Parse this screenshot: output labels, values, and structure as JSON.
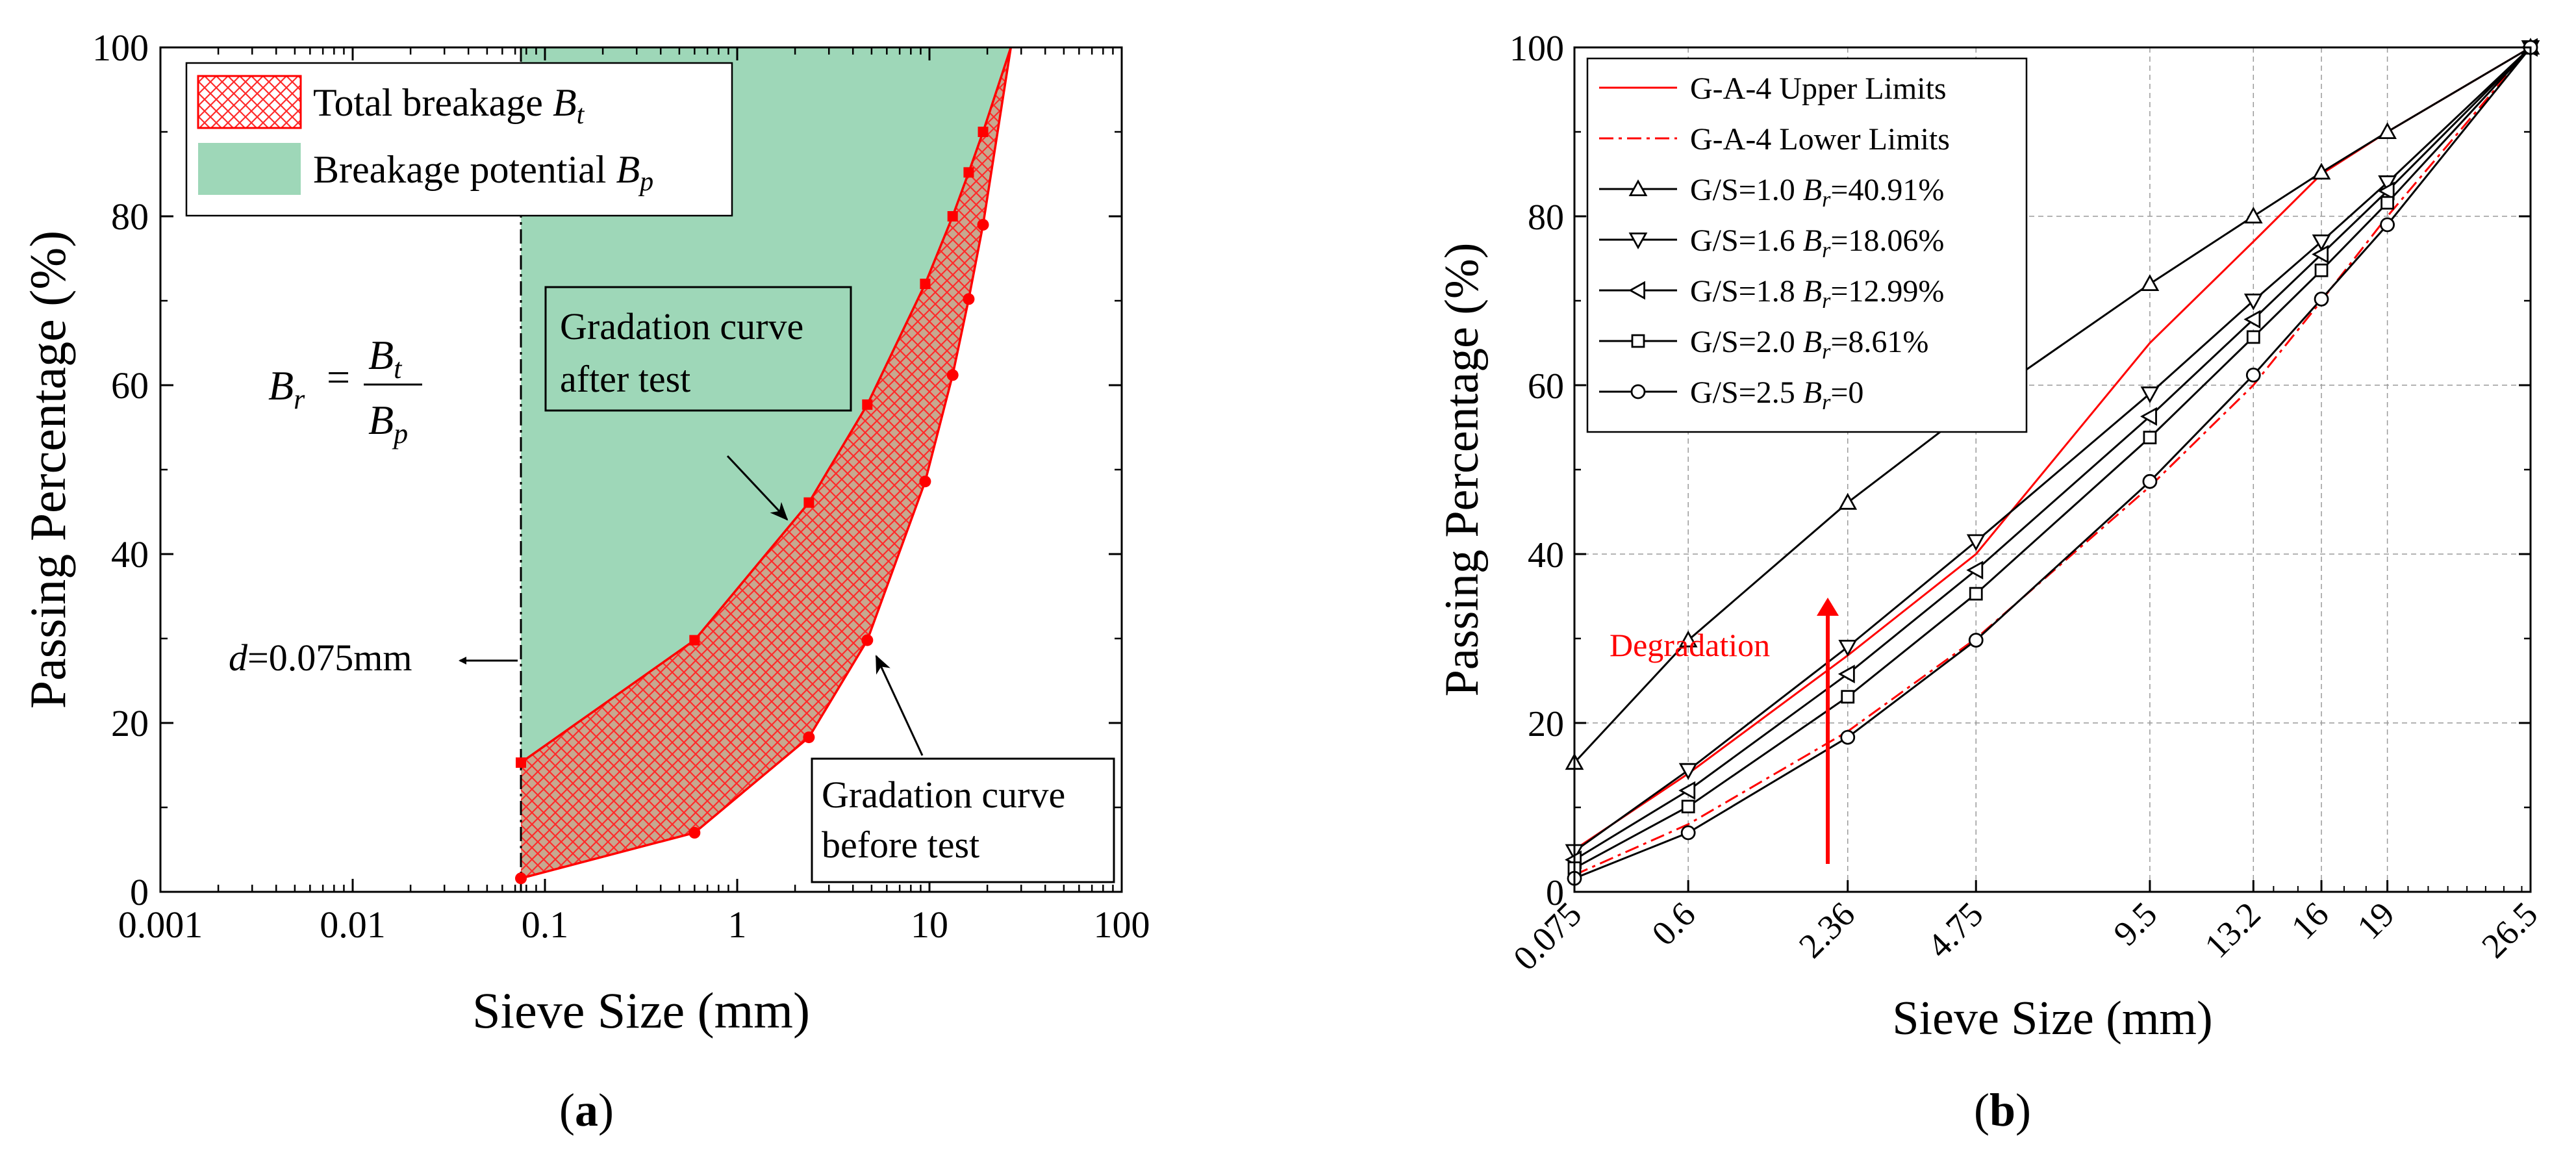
{
  "colors": {
    "red": "#ff0000",
    "green": "#9ed7b8",
    "black": "#000000"
  },
  "panel_a": {
    "caption_open": "(",
    "caption_letter": "a",
    "caption_close": ")",
    "legend": {
      "total_prefix": "Total breakage ",
      "total_sym": "B",
      "total_sub": "t",
      "potential_prefix": "Breakage potential ",
      "potential_sym": "B",
      "potential_sub": "p"
    },
    "formula": {
      "lhs": "B",
      "lhs_sub": "r",
      "eq": "=",
      "num": "B",
      "num_sub": "t",
      "den": "B",
      "den_sub": "p"
    },
    "annotation_after_1": "Gradation curve",
    "annotation_after_2": "after test",
    "annotation_before_1": "Gradation curve",
    "annotation_before_2": "before test",
    "d_label_d": "d",
    "d_label_rest": "=0.075mm"
  },
  "panel_b": {
    "caption_open": "(",
    "caption_letter": "b",
    "caption_close": ")",
    "degradation_label": "Degradation",
    "legend": [
      {
        "text": "G-A-4 Upper Limits"
      },
      {
        "text": "G-A-4 Lower Limits"
      },
      {
        "text_pre": "G/S=1.0  ",
        "sym": "B",
        "sub": "r",
        "val": "=40.91%"
      },
      {
        "text_pre": "G/S=1.6  ",
        "sym": "B",
        "sub": "r",
        "val": "=18.06%"
      },
      {
        "text_pre": "G/S=1.8  ",
        "sym": "B",
        "sub": "r",
        "val": "=12.99%"
      },
      {
        "text_pre": "G/S=2.0  ",
        "sym": "B",
        "sub": "r",
        "val": "=8.61%"
      },
      {
        "text_pre": "G/S=2.5  ",
        "sym": "B",
        "sub": "r",
        "val": "=0"
      }
    ]
  },
  "chart_data": [
    {
      "type": "area",
      "xlabel": "Sieve Size (mm)",
      "ylabel": "Passing Percentage (%)",
      "xscale": "log",
      "xlim": [
        0.001,
        100
      ],
      "ylim": [
        0,
        100
      ],
      "xticks": [
        0.001,
        0.01,
        0.1,
        1,
        10,
        100
      ],
      "xtick_labels": [
        "0.001",
        "0.01",
        "0.1",
        "1",
        "10",
        "100"
      ],
      "yticks": [
        0,
        20,
        40,
        60,
        80,
        100
      ],
      "ytick_labels": [
        "0",
        "20",
        "40",
        "60",
        "80",
        "100"
      ],
      "d_line_x": 0.075,
      "series": [
        {
          "name": "Gradation curve after test",
          "marker": "square",
          "x": [
            0.075,
            0.6,
            2.36,
            4.75,
            9.5,
            13.2,
            16,
            19,
            26.5
          ],
          "y": [
            15.3,
            29.8,
            46.1,
            57.7,
            72.0,
            80.0,
            85.2,
            90.0,
            100
          ]
        },
        {
          "name": "Gradation curve before test",
          "marker": "circle",
          "x": [
            0.075,
            0.6,
            2.36,
            4.75,
            9.5,
            13.2,
            16,
            19,
            26.5
          ],
          "y": [
            1.6,
            7.0,
            18.3,
            29.8,
            48.6,
            61.2,
            70.2,
            79.0,
            100
          ]
        }
      ]
    },
    {
      "type": "line",
      "xlabel": "Sieve Size (mm)",
      "ylabel": "Passing Percentage (%)",
      "xscale": "power 0.45",
      "xlim": [
        0.075,
        26.5
      ],
      "ylim": [
        0,
        100
      ],
      "x": [
        0.075,
        0.6,
        2.36,
        4.75,
        9.5,
        13.2,
        16,
        19,
        26.5
      ],
      "xtick_labels": [
        "0.075",
        "0.6",
        "2.36",
        "4.75",
        "9.5",
        "13.2",
        "16",
        "19",
        "26.5"
      ],
      "yticks": [
        0,
        20,
        40,
        60,
        80,
        100
      ],
      "ytick_labels": [
        "0",
        "20",
        "40",
        "60",
        "80",
        "100"
      ],
      "series": [
        {
          "name": "G-A-4 Upper Limits",
          "color": "#ff0000",
          "style": "solid",
          "marker": "none",
          "values": [
            5,
            14,
            28,
            40,
            65,
            77,
            85,
            90,
            100
          ]
        },
        {
          "name": "G-A-4 Lower Limits",
          "color": "#ff0000",
          "style": "dashdot",
          "marker": "none",
          "values": [
            2,
            8,
            19,
            30,
            48,
            60,
            70,
            80,
            100
          ]
        },
        {
          "name": "G/S=1.0 Br=40.91%",
          "color": "#000000",
          "style": "solid",
          "marker": "triangle-up",
          "values": [
            15.3,
            29.8,
            46.1,
            57.7,
            72.0,
            80.0,
            85.2,
            90.0,
            100
          ]
        },
        {
          "name": "G/S=1.6 Br=18.06%",
          "color": "#000000",
          "style": "solid",
          "marker": "triangle-down",
          "values": [
            4.8,
            14.4,
            29.0,
            41.5,
            59.0,
            70.0,
            77.0,
            84.0,
            100
          ]
        },
        {
          "name": "G/S=1.8 Br=12.99%",
          "color": "#000000",
          "style": "solid",
          "marker": "triangle-left",
          "values": [
            3.8,
            12.0,
            25.8,
            38.1,
            56.3,
            67.8,
            75.5,
            83.0,
            100
          ]
        },
        {
          "name": "G/S=2.0 Br=8.61%",
          "color": "#000000",
          "style": "solid",
          "marker": "square",
          "values": [
            2.8,
            10.1,
            23.1,
            35.3,
            53.8,
            65.7,
            73.6,
            81.6,
            100
          ]
        },
        {
          "name": "G/S=2.5 Br=0",
          "color": "#000000",
          "style": "solid",
          "marker": "circle",
          "values": [
            1.6,
            7.0,
            18.3,
            29.8,
            48.6,
            61.2,
            70.2,
            79.0,
            100
          ]
        }
      ]
    }
  ]
}
